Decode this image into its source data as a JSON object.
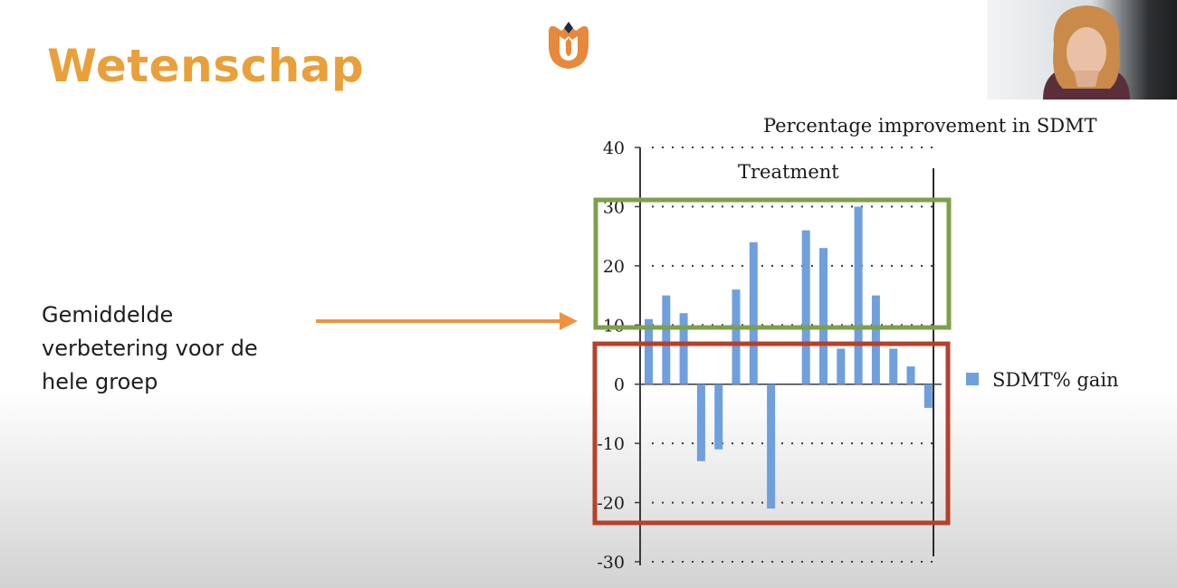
{
  "slide": {
    "title": "Wetenschap",
    "caption_lines": [
      "Gemiddelde",
      "verbetering voor de",
      "hele groep"
    ]
  },
  "logo": {
    "icon": "tulip-logo-icon",
    "color": "#e6893a"
  },
  "webcam": {
    "icon": "presenter-video-icon"
  },
  "annotations": {
    "arrow_color": "#ee9242",
    "upper_box_color": "#7ea04a",
    "lower_box_color": "#b5412b"
  },
  "chart_data": {
    "type": "bar",
    "title": "Percentage improvement in SDMT",
    "annotation": "Treatment",
    "legend": {
      "label": "SDMT% gain",
      "position": "right"
    },
    "ylim": [
      -30,
      40
    ],
    "yticks": [
      40,
      30,
      20,
      10,
      0,
      -10,
      -20,
      -30
    ],
    "ytick_labels": [
      "40",
      "30",
      "20",
      "10",
      "0",
      "-10",
      "-20",
      "-30"
    ],
    "grid": "dotted",
    "series": [
      {
        "name": "SDMT% gain",
        "color": "#6f9fdd",
        "values": [
          11,
          15,
          12,
          -13,
          -11,
          16,
          24,
          -21,
          26,
          23,
          6,
          30,
          15,
          6,
          3,
          -4
        ]
      }
    ],
    "bar_slots": [
      0,
      1,
      2,
      3,
      4,
      5,
      6,
      7,
      9,
      10,
      11,
      12,
      13,
      14,
      15,
      16
    ],
    "slot_count": 17
  }
}
